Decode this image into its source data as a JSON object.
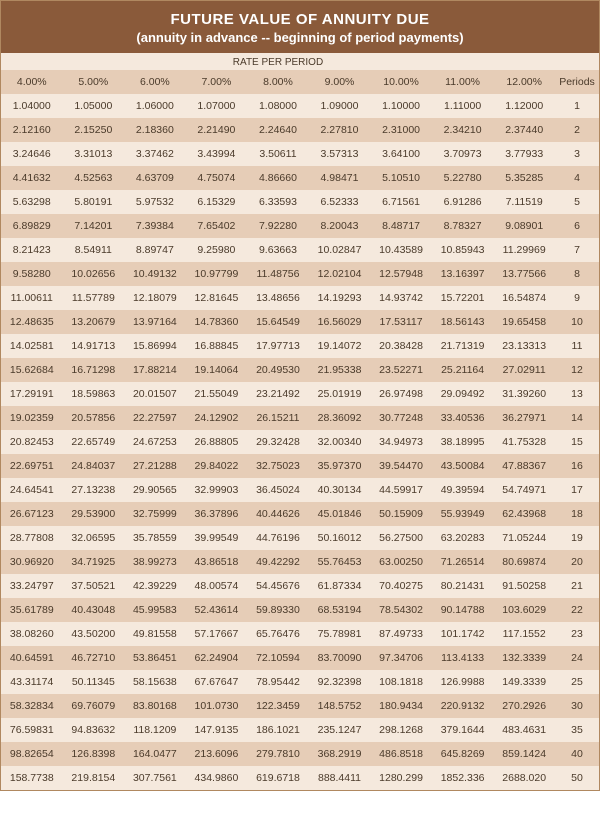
{
  "header": {
    "title": "FUTURE VALUE OF ANNUITY DUE",
    "subtitle": "(annuity in advance -- beginning of period payments)",
    "bg_color": "#8a5a3a",
    "text_color": "#ffffff"
  },
  "rate_label": "RATE PER PERIOD",
  "periods_label": "Periods",
  "columns": [
    "4.00%",
    "5.00%",
    "6.00%",
    "7.00%",
    "8.00%",
    "9.00%",
    "10.00%",
    "11.00%",
    "12.00%"
  ],
  "row_colors": {
    "odd": "#f5e9dd",
    "even": "#e6cdb7",
    "header_row": "#e6cdb7",
    "text": "#4a3a2a"
  },
  "rows": [
    {
      "period": 1,
      "values": [
        "1.04000",
        "1.05000",
        "1.06000",
        "1.07000",
        "1.08000",
        "1.09000",
        "1.10000",
        "1.11000",
        "1.12000"
      ]
    },
    {
      "period": 2,
      "values": [
        "2.12160",
        "2.15250",
        "2.18360",
        "2.21490",
        "2.24640",
        "2.27810",
        "2.31000",
        "2.34210",
        "2.37440"
      ]
    },
    {
      "period": 3,
      "values": [
        "3.24646",
        "3.31013",
        "3.37462",
        "3.43994",
        "3.50611",
        "3.57313",
        "3.64100",
        "3.70973",
        "3.77933"
      ]
    },
    {
      "period": 4,
      "values": [
        "4.41632",
        "4.52563",
        "4.63709",
        "4.75074",
        "4.86660",
        "4.98471",
        "5.10510",
        "5.22780",
        "5.35285"
      ]
    },
    {
      "period": 5,
      "values": [
        "5.63298",
        "5.80191",
        "5.97532",
        "6.15329",
        "6.33593",
        "6.52333",
        "6.71561",
        "6.91286",
        "7.11519"
      ]
    },
    {
      "period": 6,
      "values": [
        "6.89829",
        "7.14201",
        "7.39384",
        "7.65402",
        "7.92280",
        "8.20043",
        "8.48717",
        "8.78327",
        "9.08901"
      ]
    },
    {
      "period": 7,
      "values": [
        "8.21423",
        "8.54911",
        "8.89747",
        "9.25980",
        "9.63663",
        "10.02847",
        "10.43589",
        "10.85943",
        "11.29969"
      ]
    },
    {
      "period": 8,
      "values": [
        "9.58280",
        "10.02656",
        "10.49132",
        "10.97799",
        "11.48756",
        "12.02104",
        "12.57948",
        "13.16397",
        "13.77566"
      ]
    },
    {
      "period": 9,
      "values": [
        "11.00611",
        "11.57789",
        "12.18079",
        "12.81645",
        "13.48656",
        "14.19293",
        "14.93742",
        "15.72201",
        "16.54874"
      ]
    },
    {
      "period": 10,
      "values": [
        "12.48635",
        "13.20679",
        "13.97164",
        "14.78360",
        "15.64549",
        "16.56029",
        "17.53117",
        "18.56143",
        "19.65458"
      ]
    },
    {
      "period": 11,
      "values": [
        "14.02581",
        "14.91713",
        "15.86994",
        "16.88845",
        "17.97713",
        "19.14072",
        "20.38428",
        "21.71319",
        "23.13313"
      ]
    },
    {
      "period": 12,
      "values": [
        "15.62684",
        "16.71298",
        "17.88214",
        "19.14064",
        "20.49530",
        "21.95338",
        "23.52271",
        "25.21164",
        "27.02911"
      ]
    },
    {
      "period": 13,
      "values": [
        "17.29191",
        "18.59863",
        "20.01507",
        "21.55049",
        "23.21492",
        "25.01919",
        "26.97498",
        "29.09492",
        "31.39260"
      ]
    },
    {
      "period": 14,
      "values": [
        "19.02359",
        "20.57856",
        "22.27597",
        "24.12902",
        "26.15211",
        "28.36092",
        "30.77248",
        "33.40536",
        "36.27971"
      ]
    },
    {
      "period": 15,
      "values": [
        "20.82453",
        "22.65749",
        "24.67253",
        "26.88805",
        "29.32428",
        "32.00340",
        "34.94973",
        "38.18995",
        "41.75328"
      ]
    },
    {
      "period": 16,
      "values": [
        "22.69751",
        "24.84037",
        "27.21288",
        "29.84022",
        "32.75023",
        "35.97370",
        "39.54470",
        "43.50084",
        "47.88367"
      ]
    },
    {
      "period": 17,
      "values": [
        "24.64541",
        "27.13238",
        "29.90565",
        "32.99903",
        "36.45024",
        "40.30134",
        "44.59917",
        "49.39594",
        "54.74971"
      ]
    },
    {
      "period": 18,
      "values": [
        "26.67123",
        "29.53900",
        "32.75999",
        "36.37896",
        "40.44626",
        "45.01846",
        "50.15909",
        "55.93949",
        "62.43968"
      ]
    },
    {
      "period": 19,
      "values": [
        "28.77808",
        "32.06595",
        "35.78559",
        "39.99549",
        "44.76196",
        "50.16012",
        "56.27500",
        "63.20283",
        "71.05244"
      ]
    },
    {
      "period": 20,
      "values": [
        "30.96920",
        "34.71925",
        "38.99273",
        "43.86518",
        "49.42292",
        "55.76453",
        "63.00250",
        "71.26514",
        "80.69874"
      ]
    },
    {
      "period": 21,
      "values": [
        "33.24797",
        "37.50521",
        "42.39229",
        "48.00574",
        "54.45676",
        "61.87334",
        "70.40275",
        "80.21431",
        "91.50258"
      ]
    },
    {
      "period": 22,
      "values": [
        "35.61789",
        "40.43048",
        "45.99583",
        "52.43614",
        "59.89330",
        "68.53194",
        "78.54302",
        "90.14788",
        "103.6029"
      ]
    },
    {
      "period": 23,
      "values": [
        "38.08260",
        "43.50200",
        "49.81558",
        "57.17667",
        "65.76476",
        "75.78981",
        "87.49733",
        "101.1742",
        "117.1552"
      ]
    },
    {
      "period": 24,
      "values": [
        "40.64591",
        "46.72710",
        "53.86451",
        "62.24904",
        "72.10594",
        "83.70090",
        "97.34706",
        "113.4133",
        "132.3339"
      ]
    },
    {
      "period": 25,
      "values": [
        "43.31174",
        "50.11345",
        "58.15638",
        "67.67647",
        "78.95442",
        "92.32398",
        "108.1818",
        "126.9988",
        "149.3339"
      ]
    },
    {
      "period": 30,
      "values": [
        "58.32834",
        "69.76079",
        "83.80168",
        "101.0730",
        "122.3459",
        "148.5752",
        "180.9434",
        "220.9132",
        "270.2926"
      ]
    },
    {
      "period": 35,
      "values": [
        "76.59831",
        "94.83632",
        "118.1209",
        "147.9135",
        "186.1021",
        "235.1247",
        "298.1268",
        "379.1644",
        "483.4631"
      ]
    },
    {
      "period": 40,
      "values": [
        "98.82654",
        "126.8398",
        "164.0477",
        "213.6096",
        "279.7810",
        "368.2919",
        "486.8518",
        "645.8269",
        "859.1424"
      ]
    },
    {
      "period": 50,
      "values": [
        "158.7738",
        "219.8154",
        "307.7561",
        "434.9860",
        "619.6718",
        "888.4411",
        "1280.299",
        "1852.336",
        "2688.020"
      ]
    }
  ]
}
